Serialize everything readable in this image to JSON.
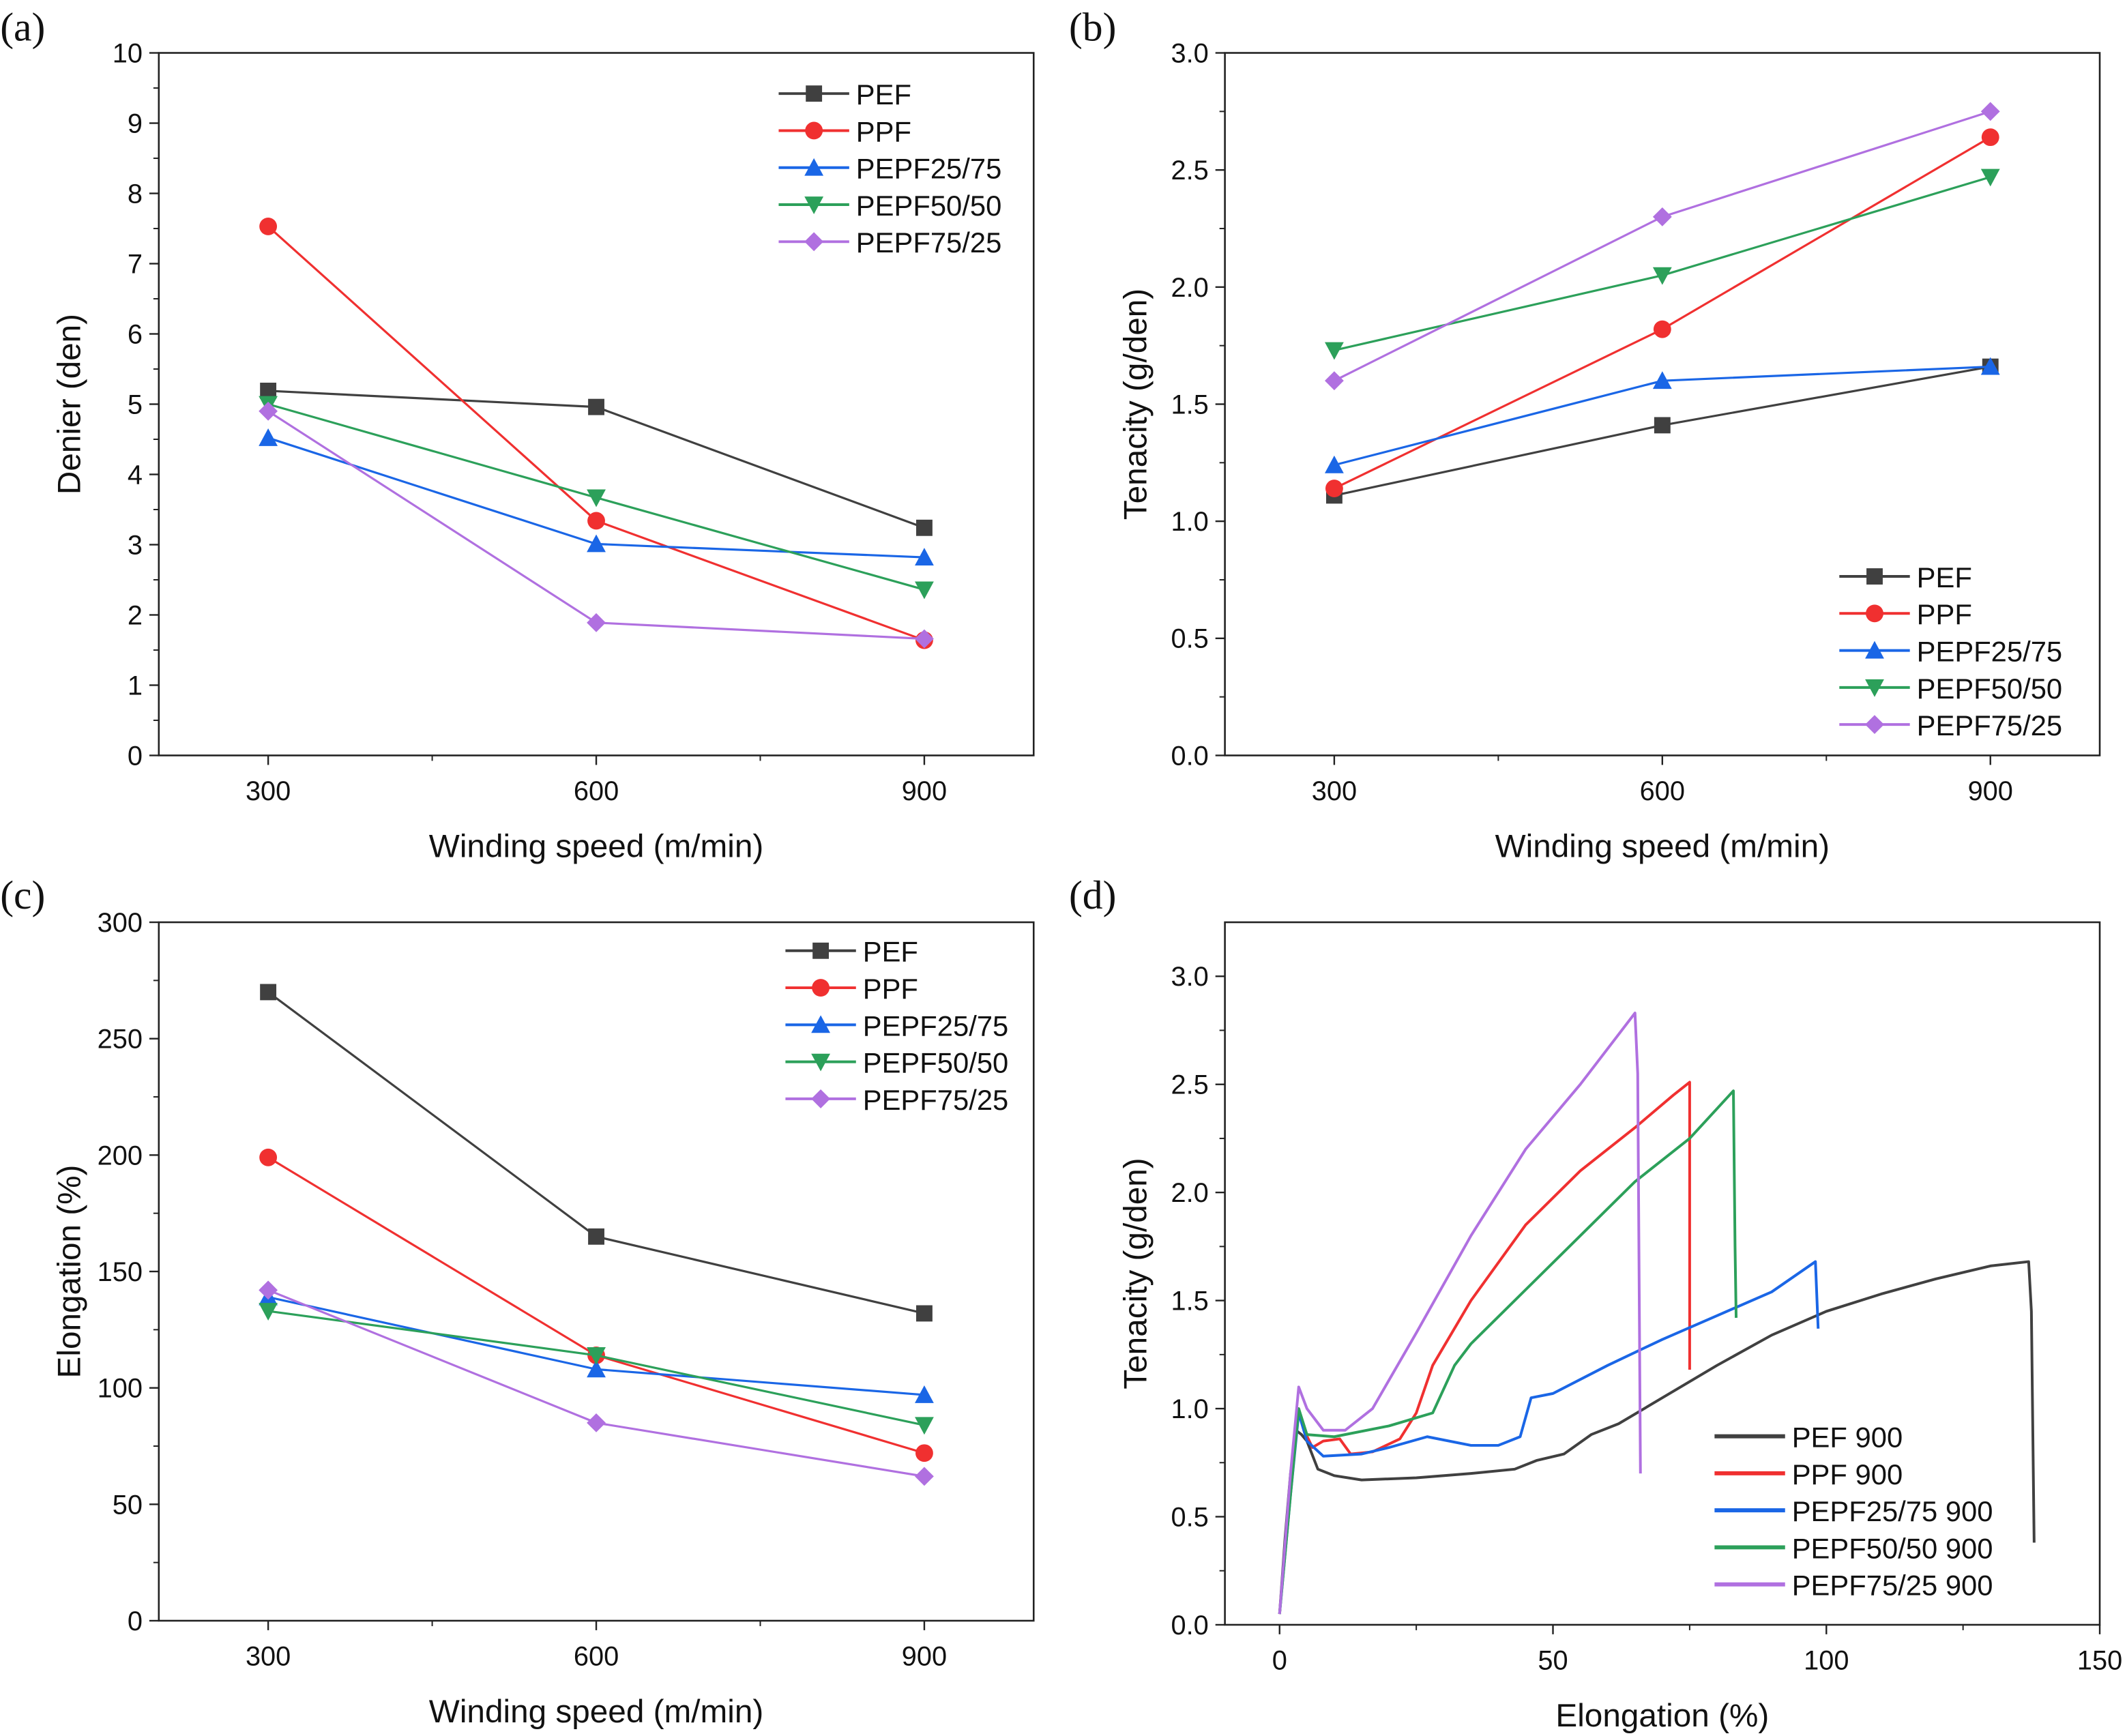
{
  "chart_data": [
    {
      "panel_label": "(a)",
      "type": "line",
      "xlabel": "Winding speed (m/min)",
      "ylabel": "Denier (den)",
      "xlim": [
        200,
        1000
      ],
      "ylim": [
        0,
        10
      ],
      "xticks": [
        300,
        600,
        900
      ],
      "yticks": [
        0,
        1,
        2,
        3,
        4,
        5,
        6,
        7,
        8,
        9,
        10
      ],
      "grid": false,
      "legend": "top-right",
      "x": [
        300,
        600,
        900
      ],
      "series": [
        {
          "name": "PEF",
          "color": "#404040",
          "marker": "square",
          "values": [
            5.19,
            4.96,
            3.24
          ]
        },
        {
          "name": "PPF",
          "color": "#f03030",
          "marker": "circle",
          "values": [
            7.53,
            3.34,
            1.64
          ]
        },
        {
          "name": "PEPF25/75",
          "color": "#1a66e6",
          "marker": "triangle-up",
          "values": [
            4.52,
            3.01,
            2.82
          ]
        },
        {
          "name": "PEPF50/50",
          "color": "#2ca05a",
          "marker": "triangle-down",
          "values": [
            5.0,
            3.67,
            2.36
          ]
        },
        {
          "name": "PEPF75/25",
          "color": "#b070e0",
          "marker": "diamond",
          "values": [
            4.9,
            1.89,
            1.66
          ]
        }
      ]
    },
    {
      "panel_label": "(b)",
      "type": "line",
      "xlabel": "Winding speed (m/min)",
      "ylabel": "Tenacity (g/den)",
      "xlim": [
        200,
        1000
      ],
      "ylim": [
        0,
        3.0
      ],
      "xticks": [
        300,
        600,
        900
      ],
      "yticks": [
        "0.0",
        "0.5",
        "1.0",
        "1.5",
        "2.0",
        "2.5",
        "3.0"
      ],
      "grid": false,
      "legend": "bottom-right",
      "x": [
        300,
        600,
        900
      ],
      "series": [
        {
          "name": "PEF",
          "color": "#404040",
          "marker": "square",
          "values": [
            1.11,
            1.41,
            1.66
          ]
        },
        {
          "name": "PPF",
          "color": "#f03030",
          "marker": "circle",
          "values": [
            1.14,
            1.82,
            2.64
          ]
        },
        {
          "name": "PEPF25/75",
          "color": "#1a66e6",
          "marker": "triangle-up",
          "values": [
            1.24,
            1.6,
            1.66
          ]
        },
        {
          "name": "PEPF50/50",
          "color": "#2ca05a",
          "marker": "triangle-down",
          "values": [
            1.73,
            2.05,
            2.47
          ]
        },
        {
          "name": "PEPF75/25",
          "color": "#b070e0",
          "marker": "diamond",
          "values": [
            1.6,
            2.3,
            2.75
          ]
        }
      ]
    },
    {
      "panel_label": "(c)",
      "type": "line",
      "xlabel": "Winding speed (m/min)",
      "ylabel": "Elongation (%)",
      "xlim": [
        200,
        1000
      ],
      "ylim": [
        0,
        300
      ],
      "xticks": [
        300,
        600,
        900
      ],
      "yticks": [
        0,
        50,
        100,
        150,
        200,
        250,
        300
      ],
      "grid": false,
      "legend": "top-right",
      "x": [
        300,
        600,
        900
      ],
      "series": [
        {
          "name": "PEF",
          "color": "#404040",
          "marker": "square",
          "values": [
            270,
            165,
            132
          ]
        },
        {
          "name": "PPF",
          "color": "#f03030",
          "marker": "circle",
          "values": [
            199,
            114,
            72
          ]
        },
        {
          "name": "PEPF25/75",
          "color": "#1a66e6",
          "marker": "triangle-up",
          "values": [
            139,
            108,
            97
          ]
        },
        {
          "name": "PEPF50/50",
          "color": "#2ca05a",
          "marker": "triangle-down",
          "values": [
            133,
            114,
            84
          ]
        },
        {
          "name": "PEPF75/25",
          "color": "#b070e0",
          "marker": "diamond",
          "values": [
            142,
            85,
            62
          ]
        }
      ]
    },
    {
      "panel_label": "(d)",
      "type": "line",
      "xlabel": "Elongation (%)",
      "ylabel": "Tenacity (g/den)",
      "xlim": [
        -10,
        150
      ],
      "ylim": [
        0,
        3.25
      ],
      "xticks": [
        0,
        50,
        100,
        150
      ],
      "yticks": [
        "0.0",
        "0.5",
        "1.0",
        "1.5",
        "2.0",
        "2.5",
        "3.0"
      ],
      "grid": false,
      "legend": "bottom-right",
      "series": [
        {
          "name": "PEF 900",
          "color": "#404040",
          "points": [
            [
              0,
              0.05
            ],
            [
              1,
              0.4
            ],
            [
              2,
              0.7
            ],
            [
              3,
              0.9
            ],
            [
              4,
              0.88
            ],
            [
              5,
              0.85
            ],
            [
              7,
              0.72
            ],
            [
              10,
              0.69
            ],
            [
              15,
              0.67
            ],
            [
              25,
              0.68
            ],
            [
              35,
              0.7
            ],
            [
              43,
              0.72
            ],
            [
              47,
              0.76
            ],
            [
              52,
              0.79
            ],
            [
              57,
              0.88
            ],
            [
              62,
              0.93
            ],
            [
              70,
              1.05
            ],
            [
              80,
              1.2
            ],
            [
              90,
              1.34
            ],
            [
              100,
              1.45
            ],
            [
              110,
              1.53
            ],
            [
              120,
              1.6
            ],
            [
              130,
              1.66
            ],
            [
              137,
              1.68
            ],
            [
              137.5,
              1.45
            ],
            [
              138,
              0.38
            ]
          ]
        },
        {
          "name": "PPF 900",
          "color": "#f03030",
          "points": [
            [
              0,
              0.05
            ],
            [
              1.5,
              0.5
            ],
            [
              3,
              0.9
            ],
            [
              3.5,
              1.0
            ],
            [
              4.5,
              0.9
            ],
            [
              6,
              0.82
            ],
            [
              8,
              0.85
            ],
            [
              11,
              0.86
            ],
            [
              13,
              0.79
            ],
            [
              17,
              0.8
            ],
            [
              22,
              0.86
            ],
            [
              25,
              0.98
            ],
            [
              28,
              1.2
            ],
            [
              35,
              1.5
            ],
            [
              45,
              1.85
            ],
            [
              55,
              2.1
            ],
            [
              65,
              2.3
            ],
            [
              72,
              2.45
            ],
            [
              75,
              2.51
            ],
            [
              75,
              1.18
            ]
          ]
        },
        {
          "name": "PEPF25/75 900",
          "color": "#1a66e6",
          "points": [
            [
              0,
              0.05
            ],
            [
              2,
              0.6
            ],
            [
              3.5,
              0.98
            ],
            [
              5,
              0.85
            ],
            [
              8,
              0.78
            ],
            [
              15,
              0.79
            ],
            [
              20,
              0.82
            ],
            [
              27,
              0.87
            ],
            [
              35,
              0.83
            ],
            [
              40,
              0.83
            ],
            [
              44,
              0.87
            ],
            [
              46,
              1.05
            ],
            [
              50,
              1.07
            ],
            [
              60,
              1.2
            ],
            [
              70,
              1.32
            ],
            [
              80,
              1.43
            ],
            [
              90,
              1.54
            ],
            [
              98,
              1.68
            ],
            [
              98.5,
              1.37
            ]
          ]
        },
        {
          "name": "PEPF50/50 900",
          "color": "#2ca05a",
          "points": [
            [
              0,
              0.05
            ],
            [
              2,
              0.6
            ],
            [
              3.5,
              1.0
            ],
            [
              5,
              0.88
            ],
            [
              10,
              0.87
            ],
            [
              20,
              0.92
            ],
            [
              28,
              0.98
            ],
            [
              32,
              1.2
            ],
            [
              35,
              1.3
            ],
            [
              45,
              1.55
            ],
            [
              55,
              1.8
            ],
            [
              65,
              2.05
            ],
            [
              75,
              2.25
            ],
            [
              83,
              2.47
            ],
            [
              83.3,
              1.75
            ],
            [
              83.5,
              1.42
            ]
          ]
        },
        {
          "name": "PEPF75/25 900",
          "color": "#b070e0",
          "points": [
            [
              0,
              0.05
            ],
            [
              2,
              0.7
            ],
            [
              3.5,
              1.1
            ],
            [
              5,
              1.0
            ],
            [
              8,
              0.9
            ],
            [
              12,
              0.9
            ],
            [
              17,
              1.0
            ],
            [
              25,
              1.35
            ],
            [
              35,
              1.8
            ],
            [
              45,
              2.2
            ],
            [
              55,
              2.5
            ],
            [
              65,
              2.83
            ],
            [
              65.5,
              2.55
            ],
            [
              66,
              0.7
            ]
          ]
        }
      ]
    }
  ]
}
